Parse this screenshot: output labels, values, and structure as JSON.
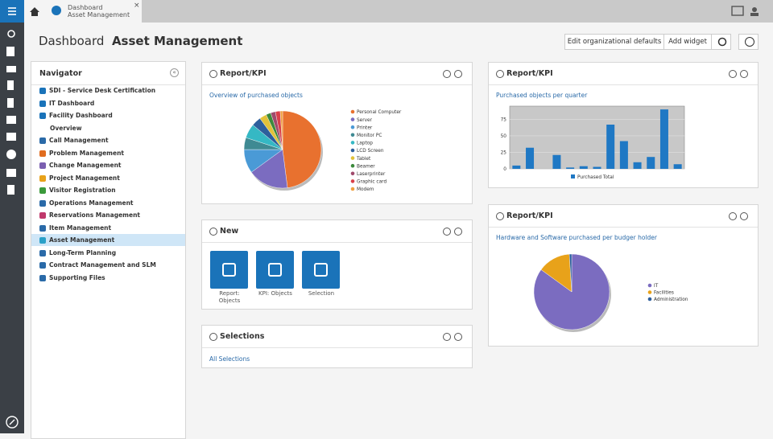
{
  "tab": {
    "line1": "Dashboard",
    "line2": "Asset Management"
  },
  "header": {
    "title": "Dashboard",
    "subtitle": "Asset Management"
  },
  "buttons": [
    "Edit organizational defaults",
    "Add widget"
  ],
  "navigator": {
    "title": "Navigator",
    "items": [
      {
        "label": "SDI - Service Desk Certification",
        "color": "#1a73b9"
      },
      {
        "label": "IT Dashboard",
        "color": "#1a73b9"
      },
      {
        "label": "Facility Dashboard",
        "color": "#1a73b9"
      },
      {
        "label": "Overview",
        "color": null
      },
      {
        "label": "Call Management",
        "color": "#2a6aa8"
      },
      {
        "label": "Problem Management",
        "color": "#e06c1f"
      },
      {
        "label": "Change Management",
        "color": "#7a5fb0"
      },
      {
        "label": "Project Management",
        "color": "#e8a21a"
      },
      {
        "label": "Visitor Registration",
        "color": "#3b9a3b"
      },
      {
        "label": "Operations Management",
        "color": "#2a6aa8"
      },
      {
        "label": "Reservations Management",
        "color": "#c0396b"
      },
      {
        "label": "Item Management",
        "color": "#2a6aa8"
      },
      {
        "label": "Asset Management",
        "color": "#2aa0c8"
      },
      {
        "label": "Long-Term Planning",
        "color": "#2a6aa8"
      },
      {
        "label": "Contract Management and SLM",
        "color": "#2a6aa8"
      },
      {
        "label": "Supporting Files",
        "color": "#2a6aa8"
      }
    ],
    "selected": 12
  },
  "widgets": {
    "kpi1": {
      "title": "Report/KPI",
      "caption": "Overview of purchased objects",
      "chart": {
        "type": "pie",
        "categories": [
          "Personal Computer",
          "Server",
          "Printer",
          "Monitor PC",
          "Laptop",
          "LCD Screen",
          "Tablet",
          "Beamer",
          "Laserprinter",
          "Graphic card",
          "Modem"
        ],
        "values": [
          48,
          17,
          10,
          5,
          6,
          4,
          3,
          2,
          2,
          2,
          1
        ],
        "colors": [
          "#e8712f",
          "#7b6cc0",
          "#4a9ad6",
          "#3f8a93",
          "#35b8c4",
          "#2d5f9c",
          "#e2c23a",
          "#3c8a3c",
          "#a04a6c",
          "#d9404a",
          "#f0a040"
        ]
      }
    },
    "kpi2": {
      "title": "Report/KPI",
      "caption": "Purchased objects per quarter",
      "chart": {
        "type": "bar",
        "series": [
          {
            "name": "Purchased Total",
            "color": "#1f78c4",
            "values": [
              5,
              32,
              0,
              21,
              2,
              4,
              3,
              67,
              42,
              10,
              18,
              90,
              7
            ]
          }
        ],
        "ylim": [
          0,
          95
        ],
        "yticks": [
          0,
          25,
          50,
          75
        ],
        "grid": true
      }
    },
    "kpi3": {
      "title": "Report/KPI",
      "caption": "Hardware and Software purchased per budger holder",
      "chart": {
        "type": "pie",
        "categories": [
          "IT",
          "Facilities",
          "Administration"
        ],
        "values": [
          85,
          14,
          1
        ],
        "colors": [
          "#7b6cc0",
          "#e8a21a",
          "#2d5f9c"
        ]
      }
    },
    "new": {
      "title": "New",
      "tiles": [
        "Report: Objects",
        "KPI: Objects",
        "Selection"
      ]
    },
    "selections": {
      "title": "Selections",
      "link": "All Selections"
    }
  }
}
